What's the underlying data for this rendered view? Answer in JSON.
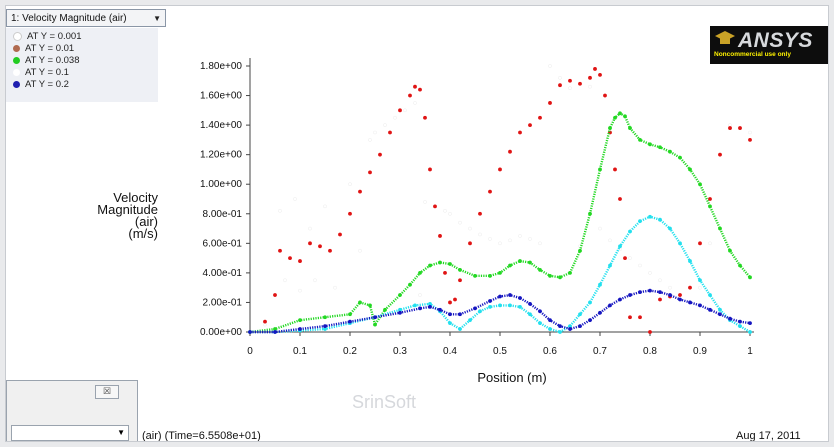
{
  "window": {
    "selector_label": "1: Velocity Magnitude (air)",
    "dialog_close_label": "☒",
    "status_left": "(air)  (Time=6.5508e+01)",
    "status_right": "Aug 17, 2011",
    "watermark": "SrinSoft"
  },
  "brand": {
    "name": "ANSYS",
    "subtitle": "Noncommercial use only"
  },
  "chart_data": {
    "type": "scatter",
    "title": "",
    "xlabel": "Position (m)",
    "ylabel": [
      "Velocity",
      "Magnitude",
      "(air)",
      "(m/s)"
    ],
    "xlim": [
      0,
      1
    ],
    "ylim": [
      0,
      1.8
    ],
    "x_ticks": [
      "0",
      "0.1",
      "0.2",
      "0.3",
      "0.4",
      "0.5",
      "0.6",
      "0.7",
      "0.8",
      "0.9",
      "1"
    ],
    "y_ticks": [
      "0.00e+00",
      "2.00e-01",
      "4.00e-01",
      "6.00e-01",
      "8.00e-01",
      "1.00e+00",
      "1.20e+00",
      "1.40e+00",
      "1.60e+00",
      "1.80e+00"
    ],
    "grid": false,
    "legend_position": "top-left",
    "series": [
      {
        "name": "AT Y = 0.001",
        "color": "#ffffff",
        "legend_color": "#ffffff",
        "x": [
          0.0,
          0.03,
          0.06,
          0.07,
          0.09,
          0.1,
          0.12,
          0.13,
          0.15,
          0.17,
          0.2,
          0.22,
          0.24,
          0.25,
          0.27,
          0.29,
          0.31,
          0.33,
          0.34,
          0.35,
          0.37,
          0.39,
          0.4,
          0.42,
          0.44,
          0.46,
          0.48,
          0.5,
          0.52,
          0.54,
          0.56,
          0.58,
          0.6,
          0.62,
          0.64,
          0.66,
          0.68,
          0.7,
          0.72,
          0.74,
          0.76,
          0.78,
          0.8,
          0.82,
          0.84,
          0.86,
          0.88,
          0.9,
          0.92,
          0.94,
          0.96,
          0.98,
          1.0
        ],
        "y": [
          0.0,
          0.05,
          0.82,
          0.35,
          0.9,
          0.28,
          0.7,
          0.35,
          0.85,
          0.3,
          1.0,
          0.55,
          1.3,
          1.35,
          1.4,
          1.45,
          1.5,
          1.55,
          0.25,
          0.88,
          0.85,
          0.82,
          0.8,
          0.74,
          0.7,
          0.66,
          0.63,
          0.6,
          0.62,
          0.65,
          0.63,
          0.6,
          1.8,
          1.72,
          1.65,
          0.58,
          1.66,
          0.7,
          0.62,
          0.56,
          0.5,
          0.45,
          0.4,
          0.35,
          0.3,
          0.25,
          0.2,
          0.3,
          0.6,
          1.2,
          1.4,
          1.38,
          1.35
        ]
      },
      {
        "name": "AT Y = 0.01",
        "color": "#e01414",
        "legend_color": "#b06a50",
        "x": [
          0.0,
          0.03,
          0.05,
          0.06,
          0.08,
          0.1,
          0.12,
          0.14,
          0.16,
          0.18,
          0.2,
          0.22,
          0.24,
          0.26,
          0.28,
          0.3,
          0.32,
          0.33,
          0.34,
          0.35,
          0.36,
          0.37,
          0.38,
          0.39,
          0.4,
          0.41,
          0.42,
          0.44,
          0.46,
          0.48,
          0.5,
          0.52,
          0.54,
          0.56,
          0.58,
          0.6,
          0.62,
          0.64,
          0.66,
          0.68,
          0.69,
          0.7,
          0.71,
          0.72,
          0.73,
          0.74,
          0.75,
          0.76,
          0.78,
          0.8,
          0.82,
          0.84,
          0.86,
          0.88,
          0.9,
          0.92,
          0.94,
          0.96,
          0.98,
          1.0
        ],
        "y": [
          0.0,
          0.07,
          0.25,
          0.55,
          0.5,
          0.48,
          0.6,
          0.58,
          0.55,
          0.66,
          0.8,
          0.95,
          1.08,
          1.2,
          1.35,
          1.5,
          1.6,
          1.66,
          1.64,
          1.45,
          1.1,
          0.85,
          0.65,
          0.4,
          0.2,
          0.22,
          0.35,
          0.6,
          0.8,
          0.95,
          1.1,
          1.22,
          1.35,
          1.4,
          1.45,
          1.55,
          1.67,
          1.7,
          1.68,
          1.72,
          1.78,
          1.74,
          1.6,
          1.35,
          1.1,
          0.9,
          0.5,
          0.1,
          0.1,
          0.0,
          0.22,
          0.24,
          0.25,
          0.3,
          0.6,
          0.9,
          1.2,
          1.38,
          1.38,
          1.3
        ]
      },
      {
        "name": "AT Y = 0.038",
        "color": "#22d822",
        "legend_color": "#22cc22",
        "x": [
          0.0,
          0.05,
          0.1,
          0.15,
          0.2,
          0.22,
          0.24,
          0.25,
          0.27,
          0.3,
          0.32,
          0.34,
          0.36,
          0.38,
          0.4,
          0.42,
          0.45,
          0.48,
          0.5,
          0.52,
          0.54,
          0.56,
          0.58,
          0.6,
          0.62,
          0.64,
          0.66,
          0.68,
          0.7,
          0.72,
          0.73,
          0.74,
          0.75,
          0.76,
          0.78,
          0.8,
          0.82,
          0.84,
          0.86,
          0.88,
          0.9,
          0.92,
          0.94,
          0.96,
          0.98,
          1.0
        ],
        "y": [
          0.0,
          0.02,
          0.08,
          0.1,
          0.12,
          0.2,
          0.18,
          0.05,
          0.15,
          0.25,
          0.32,
          0.4,
          0.45,
          0.47,
          0.46,
          0.42,
          0.38,
          0.38,
          0.4,
          0.45,
          0.48,
          0.47,
          0.42,
          0.38,
          0.37,
          0.4,
          0.55,
          0.8,
          1.1,
          1.38,
          1.45,
          1.48,
          1.46,
          1.38,
          1.3,
          1.27,
          1.25,
          1.22,
          1.18,
          1.1,
          1.0,
          0.85,
          0.7,
          0.55,
          0.45,
          0.37
        ]
      },
      {
        "name": "AT Y = 0.1",
        "color": "#22e0ee",
        "legend_color": "#ffffff",
        "x": [
          0.0,
          0.05,
          0.1,
          0.15,
          0.2,
          0.25,
          0.3,
          0.33,
          0.36,
          0.38,
          0.4,
          0.42,
          0.44,
          0.46,
          0.48,
          0.5,
          0.52,
          0.54,
          0.56,
          0.58,
          0.6,
          0.62,
          0.64,
          0.66,
          0.68,
          0.7,
          0.72,
          0.74,
          0.76,
          0.78,
          0.8,
          0.82,
          0.84,
          0.86,
          0.88,
          0.9,
          0.92,
          0.94,
          0.96,
          0.98,
          1.0
        ],
        "y": [
          0.0,
          0.0,
          0.01,
          0.02,
          0.06,
          0.1,
          0.15,
          0.18,
          0.19,
          0.14,
          0.06,
          0.02,
          0.08,
          0.14,
          0.17,
          0.18,
          0.18,
          0.17,
          0.12,
          0.06,
          0.02,
          0.0,
          0.04,
          0.12,
          0.2,
          0.32,
          0.45,
          0.58,
          0.68,
          0.75,
          0.78,
          0.76,
          0.7,
          0.6,
          0.48,
          0.35,
          0.25,
          0.15,
          0.08,
          0.04,
          0.0
        ]
      },
      {
        "name": "AT Y = 0.2",
        "color": "#1515c0",
        "legend_color": "#2020b0",
        "x": [
          0.0,
          0.05,
          0.1,
          0.15,
          0.2,
          0.25,
          0.3,
          0.34,
          0.36,
          0.38,
          0.4,
          0.42,
          0.45,
          0.48,
          0.5,
          0.52,
          0.54,
          0.56,
          0.58,
          0.6,
          0.62,
          0.64,
          0.66,
          0.68,
          0.7,
          0.72,
          0.74,
          0.76,
          0.78,
          0.8,
          0.82,
          0.84,
          0.86,
          0.88,
          0.9,
          0.92,
          0.94,
          0.96,
          0.98,
          1.0
        ],
        "y": [
          0.0,
          0.0,
          0.02,
          0.04,
          0.07,
          0.1,
          0.13,
          0.16,
          0.17,
          0.15,
          0.12,
          0.12,
          0.16,
          0.21,
          0.24,
          0.25,
          0.23,
          0.19,
          0.14,
          0.08,
          0.04,
          0.02,
          0.04,
          0.08,
          0.13,
          0.18,
          0.22,
          0.25,
          0.27,
          0.28,
          0.27,
          0.25,
          0.22,
          0.2,
          0.18,
          0.15,
          0.12,
          0.09,
          0.07,
          0.06
        ]
      }
    ]
  }
}
